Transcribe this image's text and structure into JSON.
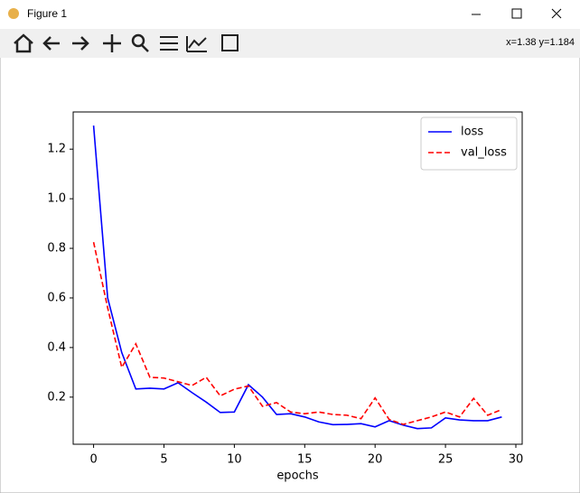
{
  "window": {
    "title": "Figure 1",
    "coordinates": "x=1.38 y=1.184"
  },
  "chart_data": {
    "type": "line",
    "xlabel": "epochs",
    "x": [
      0,
      1,
      2,
      3,
      4,
      5,
      6,
      7,
      8,
      9,
      10,
      11,
      12,
      13,
      14,
      15,
      16,
      17,
      18,
      19,
      20,
      21,
      22,
      23,
      24,
      25,
      26,
      27,
      28,
      29
    ],
    "series": [
      {
        "name": "loss",
        "color": "#0000ff",
        "dash": "solid",
        "values": [
          1.295,
          0.6,
          0.38,
          0.233,
          0.236,
          0.233,
          0.258,
          0.218,
          0.18,
          0.138,
          0.14,
          0.25,
          0.2,
          0.13,
          0.133,
          0.12,
          0.1,
          0.089,
          0.09,
          0.093,
          0.08,
          0.105,
          0.087,
          0.073,
          0.076,
          0.116,
          0.108,
          0.105,
          0.105,
          0.12
        ]
      },
      {
        "name": "val_loss",
        "color": "#ff0000",
        "dash": "dashed",
        "values": [
          0.825,
          0.56,
          0.32,
          0.415,
          0.28,
          0.277,
          0.262,
          0.247,
          0.28,
          0.205,
          0.232,
          0.245,
          0.163,
          0.178,
          0.14,
          0.133,
          0.14,
          0.13,
          0.127,
          0.113,
          0.197,
          0.11,
          0.09,
          0.105,
          0.12,
          0.14,
          0.12,
          0.195,
          0.127,
          0.15
        ]
      }
    ],
    "xlim": [
      -1.45,
      30.45
    ],
    "xticks": [
      0,
      5,
      10,
      15,
      20,
      25,
      30
    ],
    "ylim": [
      0.01,
      1.35
    ],
    "yticks": [
      0.2,
      0.4,
      0.6,
      0.8,
      {
        "value": 1,
        "label": "1.0"
      },
      1.2
    ],
    "legend": "upper right",
    "grid": false
  }
}
